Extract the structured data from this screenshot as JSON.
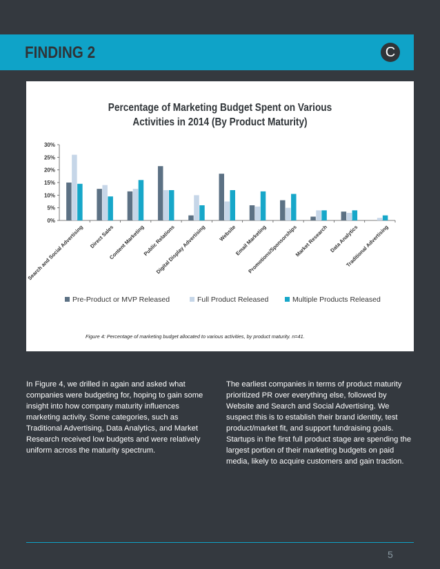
{
  "header": {
    "title": "FINDING 2",
    "logo_letter": "C"
  },
  "chart_data": {
    "type": "bar",
    "title": "Percentage of Marketing Budget Spent on Various Activities in 2014 (By Product Maturity)",
    "title_lines": [
      "Percentage of Marketing Budget Spent on Various",
      "Activities in 2014 (By Product Maturity)"
    ],
    "xlabel": "",
    "ylabel": "",
    "ylim": [
      0,
      30
    ],
    "yticks": [
      0,
      5,
      10,
      15,
      20,
      25,
      30
    ],
    "ytick_labels": [
      "0%",
      "5%",
      "10%",
      "15%",
      "20%",
      "25%",
      "30%"
    ],
    "grid": false,
    "legend_position": "bottom",
    "categories": [
      "Search and Social Advertising",
      "Direct Sales",
      "Content Marketing",
      "Public Relations",
      "Digital Display Advertising",
      "Website",
      "Email Marketing",
      "Promotions/Sponsorships",
      "Market Research",
      "Data Analytics",
      "Traditional Advertising"
    ],
    "series": [
      {
        "name": "Pre-Product or MVP Released",
        "color": "#5c7184",
        "values": [
          15,
          12.5,
          11.5,
          21.5,
          2,
          18.5,
          6,
          8,
          1.5,
          3.5,
          0
        ]
      },
      {
        "name": "Full Product Released",
        "color": "#c6d6e8",
        "values": [
          26,
          14,
          12.5,
          12,
          10,
          7.5,
          5.5,
          5,
          4,
          3,
          1
        ]
      },
      {
        "name": "Multiple Products Released",
        "color": "#17a7c9",
        "values": [
          14.5,
          9.5,
          16,
          12,
          6,
          12,
          11.5,
          10.5,
          4,
          4,
          2
        ]
      }
    ]
  },
  "figure_caption": "Figure 4: Percentage of marketing budget allocated to various activities, by product maturity. n=41.",
  "body": {
    "left": "In Figure 4, we drilled in again and asked what companies were budgeting for, hoping to gain some insight into how company maturity influences marketing activity. Some categories, such as Traditional Advertising, Data Analytics, and Market Research received low budgets and were relatively uniform across the maturity spectrum.",
    "right": "The earliest companies in terms of product maturity prioritized PR over everything else, followed by Website and Search and Social Advertising. We suspect this is to establish their brand identity, test product/market fit, and support fundraising goals. Startups in the first full product stage are spending the largest portion of their marketing budgets on paid media, likely to acquire customers and gain traction."
  },
  "footer": {
    "page_number": "5"
  }
}
